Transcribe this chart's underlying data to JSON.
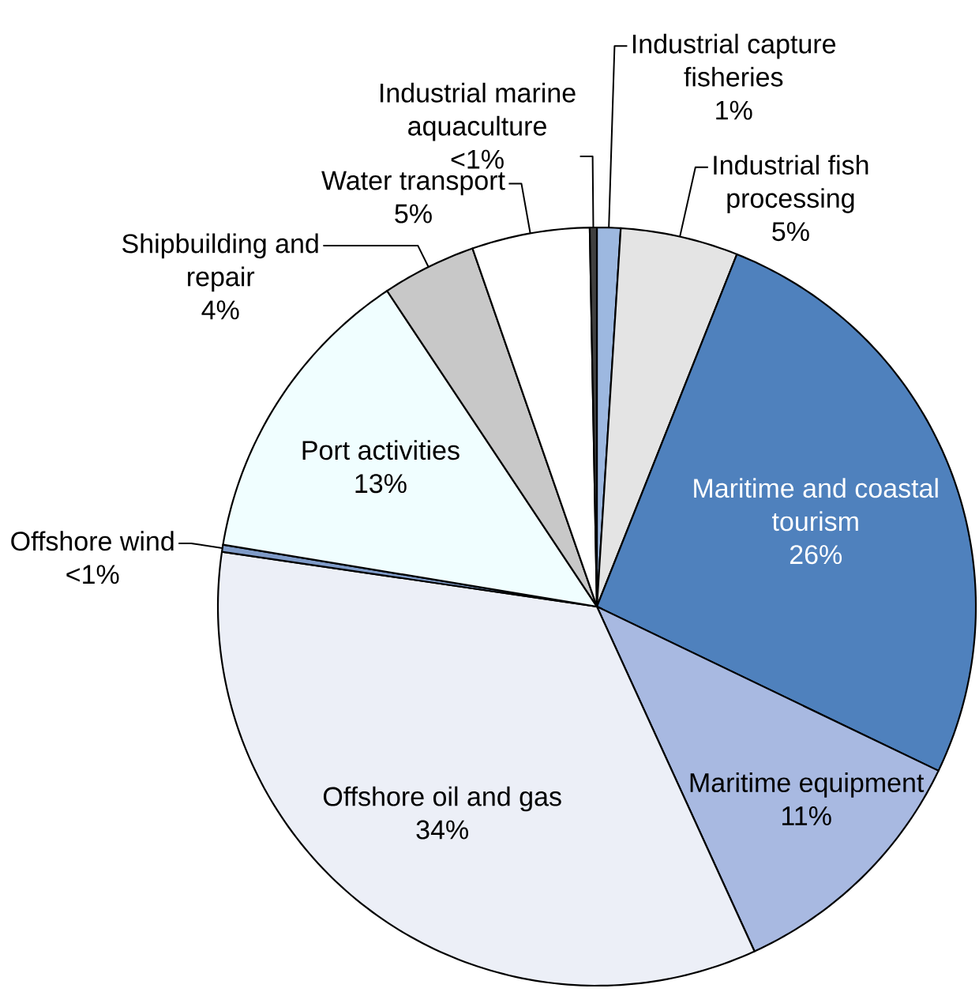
{
  "chart_data": {
    "type": "pie",
    "categories": [
      "Industrial capture fisheries",
      "Industrial fish processing",
      "Maritime and coastal tourism",
      "Maritime equipment",
      "Offshore oil and gas",
      "Offshore wind",
      "Port activities",
      "Shipbuilding and repair",
      "Water transport",
      "Industrial marine aquaculture"
    ],
    "values": [
      1,
      5,
      26,
      11,
      34,
      0.3,
      13,
      4,
      5,
      0.3
    ],
    "value_labels": [
      "1%",
      "5%",
      "26%",
      "11%",
      "34%",
      "<1%",
      "13%",
      "4%",
      "5%",
      "<1%"
    ],
    "colors": [
      "#9db8e0",
      "#e4e4e4",
      "#4f81bd",
      "#a8b9e1",
      "#eceff7",
      "#7f9bc8",
      "#f0feff",
      "#c8c8c8",
      "#ffffff",
      "#404040"
    ]
  }
}
